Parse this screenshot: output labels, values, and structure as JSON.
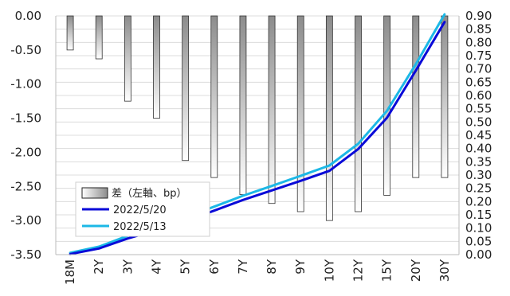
{
  "chart_data": {
    "type": "bar+line",
    "categories": [
      "18M",
      "2Y",
      "3Y",
      "4Y",
      "5Y",
      "6Y",
      "7Y",
      "8Y",
      "9Y",
      "10Y",
      "12Y",
      "15Y",
      "20Y",
      "30Y"
    ],
    "bar_series": {
      "name": "差（左軸、bp）",
      "axis": "left",
      "values": [
        -0.5,
        -0.63,
        -1.25,
        -1.5,
        -2.12,
        -2.37,
        -2.62,
        -2.75,
        -2.87,
        -3.0,
        -2.87,
        -2.63,
        -2.37,
        -2.37
      ]
    },
    "line_series": [
      {
        "name": "2022/5/20",
        "axis": "right",
        "color": "#0a0ad8",
        "values": [
          0.002,
          0.023,
          0.061,
          0.092,
          0.126,
          0.166,
          0.206,
          0.242,
          0.278,
          0.316,
          0.398,
          0.516,
          0.694,
          0.877
        ]
      },
      {
        "name": "2022/5/13",
        "axis": "right",
        "color": "#1cb8e6",
        "values": [
          0.007,
          0.03,
          0.071,
          0.103,
          0.14,
          0.181,
          0.222,
          0.259,
          0.297,
          0.336,
          0.418,
          0.542,
          0.718,
          0.906
        ]
      }
    ],
    "left_axis": {
      "min": -3.5,
      "max": 0.0,
      "step": 0.5,
      "tick_labels": [
        "0.00",
        "-0.50",
        "-1.00",
        "-1.50",
        "-2.00",
        "-2.50",
        "-3.00",
        "-3.50"
      ]
    },
    "right_axis": {
      "min": 0.0,
      "max": 0.9,
      "step": 0.05,
      "tick_labels": [
        "0.90",
        "0.85",
        "0.80",
        "0.75",
        "0.70",
        "0.65",
        "0.60",
        "0.55",
        "0.50",
        "0.45",
        "0.40",
        "0.35",
        "0.30",
        "0.25",
        "0.20",
        "0.15",
        "0.10",
        "0.05",
        "0.00"
      ]
    },
    "grid": true,
    "legend_position": "left-middle",
    "bar_gradient": [
      "#ffffff",
      "#8c8c8c"
    ]
  }
}
